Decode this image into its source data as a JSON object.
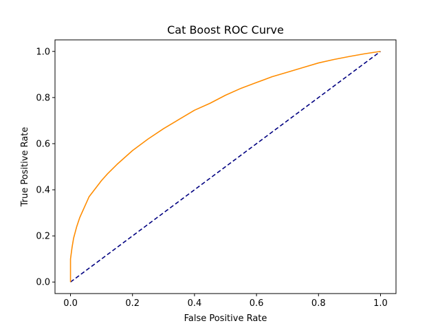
{
  "chart_data": {
    "type": "line",
    "title": "Cat Boost ROC Curve",
    "xlabel": "False Positive Rate",
    "ylabel": "True Positive Rate",
    "xlim": [
      -0.05,
      1.05
    ],
    "ylim": [
      -0.05,
      1.05
    ],
    "xticks": [
      "0.0",
      "0.2",
      "0.4",
      "0.6",
      "0.8",
      "1.0"
    ],
    "yticks": [
      "0.0",
      "0.2",
      "0.4",
      "0.6",
      "0.8",
      "1.0"
    ],
    "grid": false,
    "series": [
      {
        "color": "#ff8c00",
        "linestyle": "solid",
        "x": [
          0.0,
          0.0,
          0.005,
          0.01,
          0.02,
          0.03,
          0.04,
          0.05,
          0.06,
          0.08,
          0.1,
          0.12,
          0.15,
          0.2,
          0.25,
          0.3,
          0.35,
          0.4,
          0.45,
          0.5,
          0.55,
          0.6,
          0.65,
          0.7,
          0.75,
          0.8,
          0.85,
          0.9,
          0.95,
          1.0
        ],
        "y": [
          0.0,
          0.1,
          0.15,
          0.19,
          0.24,
          0.28,
          0.31,
          0.34,
          0.37,
          0.405,
          0.44,
          0.47,
          0.51,
          0.57,
          0.62,
          0.665,
          0.705,
          0.745,
          0.775,
          0.81,
          0.84,
          0.865,
          0.89,
          0.91,
          0.93,
          0.95,
          0.965,
          0.978,
          0.99,
          1.0
        ]
      },
      {
        "color": "#000080",
        "linestyle": "dashed",
        "x": [
          0.0,
          1.0
        ],
        "y": [
          0.0,
          1.0
        ]
      }
    ]
  }
}
